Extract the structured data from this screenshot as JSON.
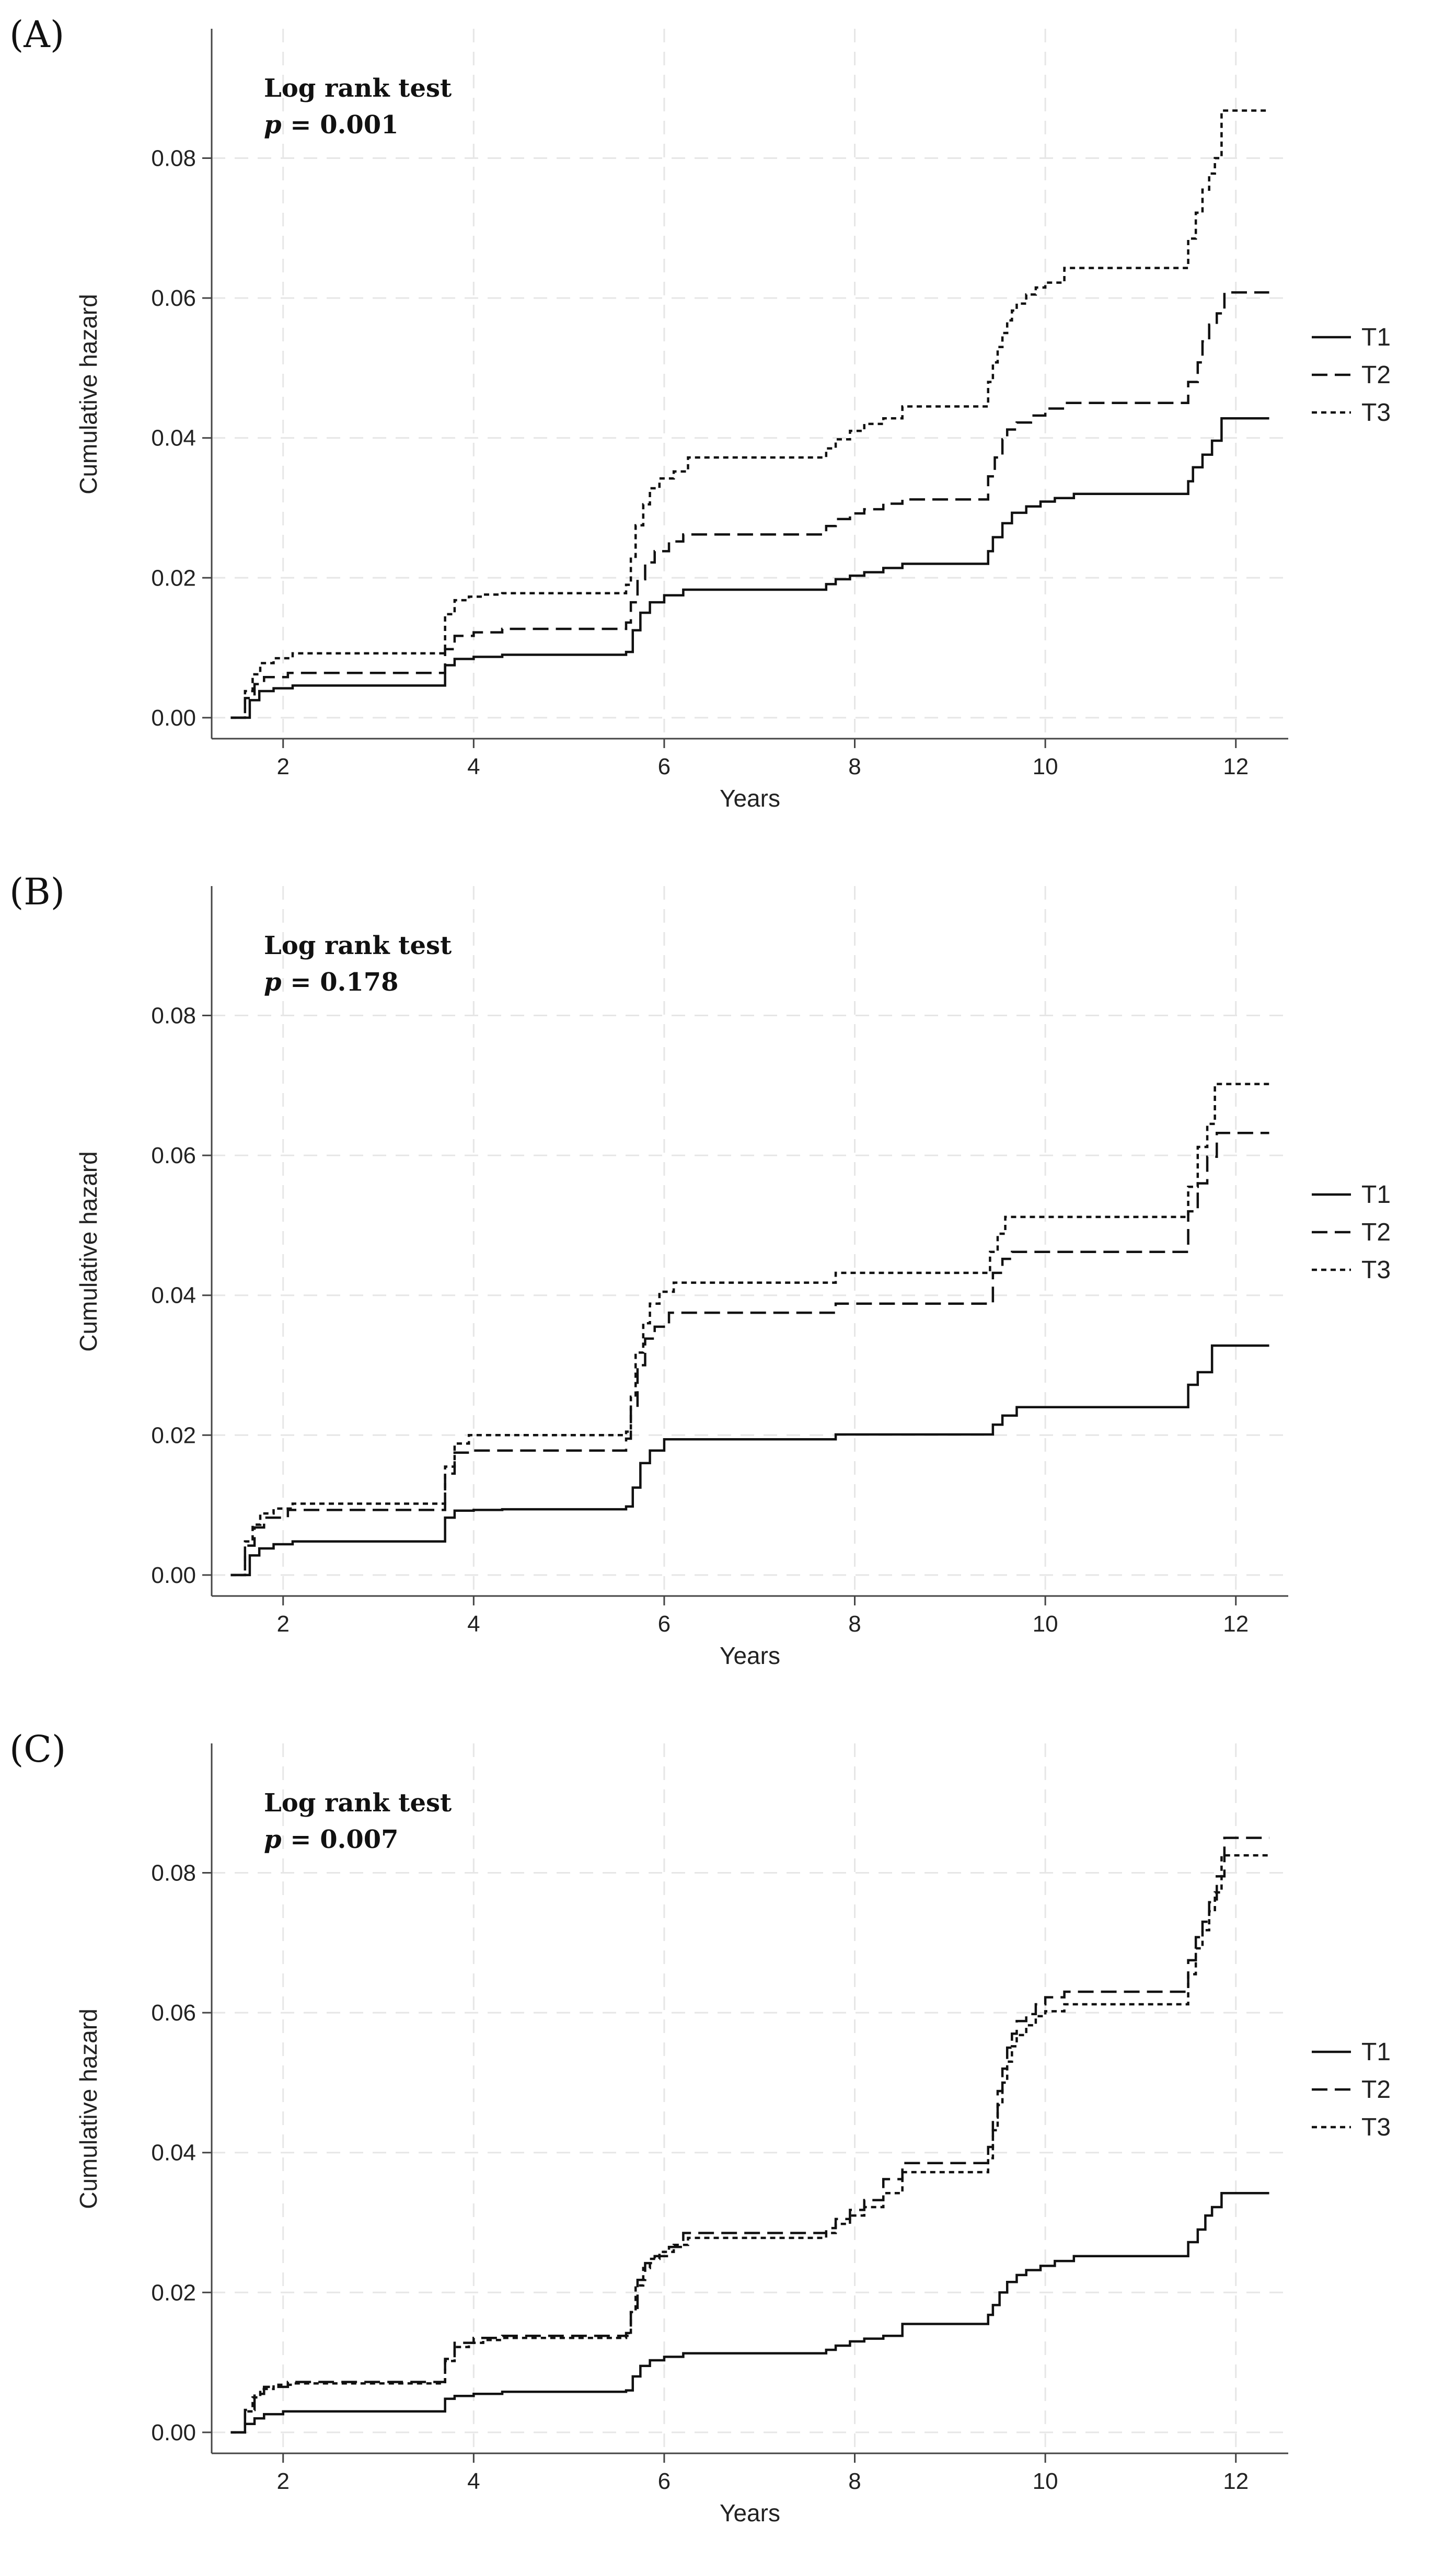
{
  "chart_data": [
    {
      "type": "line",
      "panel_label": "(A)",
      "annotation": {
        "title": "Log rank test",
        "p_symbol": "p",
        "p_text": " = 0.001"
      },
      "xlabel": "Years",
      "ylabel": "Cumulative hazard",
      "xlim": [
        1.25,
        12.55
      ],
      "ylim": [
        -0.003,
        0.0985
      ],
      "xticks": [
        2,
        4,
        6,
        8,
        10,
        12
      ],
      "xtick_labels": [
        "2",
        "4",
        "6",
        "8",
        "10",
        "12"
      ],
      "yticks": [
        0,
        0.02,
        0.04,
        0.06,
        0.08
      ],
      "ytick_labels": [
        "0.00",
        "0.02",
        "0.04",
        "0.06",
        "0.08"
      ],
      "grid": true,
      "legend_position": "right",
      "series": [
        {
          "name": "T1",
          "style": "solid",
          "x": [
            1.45,
            1.65,
            1.75,
            1.9,
            2.1,
            3.7,
            3.8,
            4.0,
            4.3,
            5.6,
            5.67,
            5.75,
            5.85,
            6.0,
            6.2,
            7.7,
            7.8,
            7.95,
            8.1,
            8.3,
            8.5,
            9.4,
            9.45,
            9.55,
            9.65,
            9.8,
            9.95,
            10.1,
            10.3,
            11.5,
            11.55,
            11.65,
            11.75,
            11.85,
            12.35
          ],
          "y": [
            0.0,
            0.0025,
            0.0038,
            0.0042,
            0.0046,
            0.0075,
            0.0084,
            0.0087,
            0.009,
            0.0094,
            0.0125,
            0.015,
            0.0165,
            0.0175,
            0.0183,
            0.0191,
            0.0198,
            0.0203,
            0.0208,
            0.0214,
            0.022,
            0.0238,
            0.0258,
            0.0278,
            0.0293,
            0.0302,
            0.0309,
            0.0314,
            0.032,
            0.0338,
            0.0358,
            0.0376,
            0.0396,
            0.0428,
            0.0428
          ]
        },
        {
          "name": "T2",
          "style": "dashed",
          "x": [
            1.45,
            1.6,
            1.7,
            1.8,
            2.05,
            3.7,
            3.8,
            4.0,
            4.3,
            5.6,
            5.65,
            5.72,
            5.8,
            5.9,
            6.05,
            6.2,
            7.7,
            7.8,
            7.95,
            8.1,
            8.3,
            8.5,
            9.4,
            9.47,
            9.55,
            9.6,
            9.7,
            9.85,
            10.0,
            10.2,
            11.5,
            11.6,
            11.65,
            11.72,
            11.8,
            11.88,
            12.35
          ],
          "y": [
            0.0,
            0.0028,
            0.0048,
            0.0058,
            0.0064,
            0.0098,
            0.0117,
            0.0122,
            0.0127,
            0.0136,
            0.0165,
            0.0198,
            0.0222,
            0.0238,
            0.0252,
            0.0262,
            0.0274,
            0.0284,
            0.0292,
            0.0298,
            0.0306,
            0.0312,
            0.0345,
            0.0372,
            0.0398,
            0.0412,
            0.0422,
            0.0432,
            0.0442,
            0.045,
            0.048,
            0.0508,
            0.0538,
            0.0562,
            0.0578,
            0.0608,
            0.0608
          ]
        },
        {
          "name": "T3",
          "style": "dotted",
          "x": [
            1.45,
            1.6,
            1.68,
            1.76,
            1.9,
            2.1,
            3.7,
            3.8,
            3.95,
            4.1,
            4.3,
            5.6,
            5.65,
            5.7,
            5.78,
            5.85,
            5.95,
            6.1,
            6.25,
            7.7,
            7.8,
            7.95,
            8.1,
            8.3,
            8.5,
            9.4,
            9.45,
            9.5,
            9.55,
            9.6,
            9.65,
            9.7,
            9.8,
            9.9,
            10.0,
            10.2,
            11.5,
            11.58,
            11.65,
            11.72,
            11.78,
            11.85,
            12.35
          ],
          "y": [
            0.0,
            0.0038,
            0.0062,
            0.0078,
            0.0085,
            0.0092,
            0.0148,
            0.0168,
            0.0173,
            0.0176,
            0.0178,
            0.019,
            0.023,
            0.0275,
            0.0305,
            0.0328,
            0.0342,
            0.0352,
            0.0372,
            0.0385,
            0.0398,
            0.041,
            0.042,
            0.0428,
            0.0445,
            0.048,
            0.0508,
            0.053,
            0.055,
            0.0568,
            0.0582,
            0.0592,
            0.0605,
            0.0615,
            0.0622,
            0.0643,
            0.0685,
            0.0722,
            0.0755,
            0.0778,
            0.08,
            0.0868,
            0.0868
          ]
        }
      ]
    },
    {
      "type": "line",
      "panel_label": "(B)",
      "annotation": {
        "title": "Log rank test",
        "p_symbol": "p",
        "p_text": " = 0.178"
      },
      "xlabel": "Years",
      "ylabel": "Cumulative hazard",
      "xlim": [
        1.25,
        12.55
      ],
      "ylim": [
        -0.003,
        0.0985
      ],
      "xticks": [
        2,
        4,
        6,
        8,
        10,
        12
      ],
      "xtick_labels": [
        "2",
        "4",
        "6",
        "8",
        "10",
        "12"
      ],
      "yticks": [
        0,
        0.02,
        0.04,
        0.06,
        0.08
      ],
      "ytick_labels": [
        "0.00",
        "0.02",
        "0.04",
        "0.06",
        "0.08"
      ],
      "grid": true,
      "legend_position": "right",
      "series": [
        {
          "name": "T1",
          "style": "solid",
          "x": [
            1.45,
            1.65,
            1.75,
            1.9,
            2.1,
            3.7,
            3.8,
            4.0,
            4.3,
            5.6,
            5.67,
            5.75,
            5.85,
            6.0,
            7.8,
            9.45,
            9.55,
            9.7,
            11.5,
            11.6,
            11.75,
            12.35
          ],
          "y": [
            0.0,
            0.0028,
            0.0038,
            0.0044,
            0.0048,
            0.0082,
            0.0092,
            0.0093,
            0.0094,
            0.0098,
            0.0125,
            0.016,
            0.0178,
            0.0194,
            0.0201,
            0.0215,
            0.0228,
            0.024,
            0.0272,
            0.029,
            0.0328,
            0.0328
          ]
        },
        {
          "name": "T2",
          "style": "dashed",
          "x": [
            1.45,
            1.6,
            1.7,
            1.8,
            2.05,
            3.7,
            3.8,
            4.0,
            5.6,
            5.65,
            5.72,
            5.8,
            5.9,
            6.05,
            7.8,
            9.45,
            9.55,
            9.65,
            11.5,
            11.6,
            11.7,
            11.8,
            12.35
          ],
          "y": [
            0.0,
            0.0042,
            0.0068,
            0.0082,
            0.0093,
            0.0145,
            0.0175,
            0.0178,
            0.0195,
            0.0238,
            0.03,
            0.0338,
            0.0355,
            0.0375,
            0.0388,
            0.0432,
            0.0452,
            0.0462,
            0.052,
            0.056,
            0.0598,
            0.0632,
            0.0632
          ]
        },
        {
          "name": "T3",
          "style": "dotted",
          "x": [
            1.45,
            1.6,
            1.68,
            1.76,
            1.9,
            2.1,
            3.7,
            3.8,
            3.95,
            5.6,
            5.65,
            5.7,
            5.78,
            5.85,
            5.95,
            6.1,
            7.8,
            9.42,
            9.5,
            9.58,
            11.5,
            11.6,
            11.7,
            11.78,
            12.35
          ],
          "y": [
            0.0,
            0.0048,
            0.0072,
            0.0088,
            0.0095,
            0.0102,
            0.0155,
            0.0188,
            0.02,
            0.0205,
            0.0255,
            0.0318,
            0.036,
            0.0388,
            0.0405,
            0.0418,
            0.0432,
            0.0462,
            0.0488,
            0.0512,
            0.0555,
            0.0612,
            0.0645,
            0.0702,
            0.0702
          ]
        }
      ]
    },
    {
      "type": "line",
      "panel_label": "(C)",
      "annotation": {
        "title": "Log rank test",
        "p_symbol": "p",
        "p_text": " = 0.007"
      },
      "xlabel": "Years",
      "ylabel": "Cumulative hazard",
      "xlim": [
        1.25,
        12.55
      ],
      "ylim": [
        -0.003,
        0.0985
      ],
      "xticks": [
        2,
        4,
        6,
        8,
        10,
        12
      ],
      "xtick_labels": [
        "2",
        "4",
        "6",
        "8",
        "10",
        "12"
      ],
      "yticks": [
        0,
        0.02,
        0.04,
        0.06,
        0.08
      ],
      "ytick_labels": [
        "0.00",
        "0.02",
        "0.04",
        "0.06",
        "0.08"
      ],
      "grid": true,
      "legend_position": "right",
      "series": [
        {
          "name": "T1",
          "style": "solid",
          "x": [
            1.45,
            1.6,
            1.7,
            1.8,
            2.0,
            3.7,
            3.8,
            4.0,
            4.3,
            5.6,
            5.67,
            5.75,
            5.85,
            6.0,
            6.2,
            7.7,
            7.8,
            7.95,
            8.1,
            8.3,
            8.5,
            9.4,
            9.45,
            9.52,
            9.6,
            9.7,
            9.8,
            9.95,
            10.1,
            10.3,
            11.5,
            11.6,
            11.68,
            11.75,
            11.85,
            12.35
          ],
          "y": [
            0.0,
            0.0012,
            0.002,
            0.0026,
            0.003,
            0.0048,
            0.0052,
            0.0055,
            0.0058,
            0.006,
            0.008,
            0.0095,
            0.0103,
            0.0108,
            0.0113,
            0.0118,
            0.0124,
            0.013,
            0.0134,
            0.0138,
            0.0155,
            0.0168,
            0.0182,
            0.02,
            0.0215,
            0.0225,
            0.0232,
            0.0238,
            0.0245,
            0.0252,
            0.0272,
            0.029,
            0.031,
            0.0322,
            0.0342,
            0.0342
          ]
        },
        {
          "name": "T2",
          "style": "dashed",
          "x": [
            1.45,
            1.6,
            1.7,
            1.8,
            2.05,
            3.7,
            3.8,
            4.0,
            4.3,
            5.6,
            5.65,
            5.72,
            5.8,
            5.9,
            6.05,
            6.2,
            7.7,
            7.8,
            7.95,
            8.1,
            8.3,
            8.5,
            9.4,
            9.45,
            9.5,
            9.55,
            9.6,
            9.65,
            9.7,
            9.8,
            9.9,
            10.0,
            10.2,
            11.5,
            11.58,
            11.65,
            11.72,
            11.8,
            11.88,
            12.35
          ],
          "y": [
            0.0,
            0.0032,
            0.0055,
            0.0065,
            0.0072,
            0.0105,
            0.0128,
            0.0135,
            0.0138,
            0.0142,
            0.0178,
            0.0218,
            0.0242,
            0.0252,
            0.0265,
            0.0285,
            0.0292,
            0.0305,
            0.0318,
            0.0332,
            0.0362,
            0.0385,
            0.0408,
            0.045,
            0.0488,
            0.052,
            0.055,
            0.057,
            0.0588,
            0.0598,
            0.0612,
            0.0622,
            0.063,
            0.0675,
            0.0708,
            0.073,
            0.0758,
            0.0795,
            0.085,
            0.085
          ]
        },
        {
          "name": "T3",
          "style": "dotted",
          "x": [
            1.45,
            1.6,
            1.68,
            1.76,
            1.9,
            2.1,
            3.7,
            3.8,
            3.95,
            4.1,
            4.3,
            5.6,
            5.65,
            5.7,
            5.78,
            5.85,
            5.95,
            6.1,
            6.25,
            7.7,
            7.8,
            7.95,
            8.1,
            8.3,
            8.5,
            9.4,
            9.45,
            9.5,
            9.55,
            9.6,
            9.65,
            9.7,
            9.8,
            9.9,
            10.0,
            10.2,
            11.5,
            11.58,
            11.65,
            11.72,
            11.78,
            11.85,
            12.35
          ],
          "y": [
            0.0,
            0.003,
            0.005,
            0.0062,
            0.0068,
            0.007,
            0.0102,
            0.0122,
            0.0128,
            0.0132,
            0.0135,
            0.0138,
            0.0172,
            0.021,
            0.0235,
            0.0248,
            0.0258,
            0.0268,
            0.0278,
            0.0285,
            0.0298,
            0.031,
            0.0322,
            0.0342,
            0.0372,
            0.0392,
            0.0432,
            0.0468,
            0.05,
            0.053,
            0.0552,
            0.0568,
            0.0582,
            0.0595,
            0.0602,
            0.0612,
            0.0655,
            0.0692,
            0.0718,
            0.0745,
            0.0772,
            0.0825,
            0.0825
          ]
        }
      ]
    }
  ]
}
